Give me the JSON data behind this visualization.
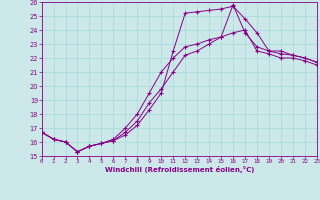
{
  "xlabel": "Windchill (Refroidissement éolien,°C)",
  "background_color": "#cce8e8",
  "grid_color": "#aadddd",
  "line_color": "#880088",
  "xmin": 0,
  "xmax": 23,
  "ymin": 15,
  "ymax": 26,
  "line1_x": [
    0,
    1,
    2,
    3,
    4,
    5,
    6,
    7,
    8,
    9,
    10,
    11,
    12,
    13,
    14,
    15,
    16,
    17,
    18,
    19,
    20,
    21,
    22,
    23
  ],
  "line1_y": [
    16.7,
    16.2,
    16.0,
    15.3,
    15.7,
    15.9,
    16.1,
    16.5,
    17.2,
    18.3,
    19.5,
    22.5,
    25.2,
    25.3,
    25.4,
    25.5,
    25.7,
    24.8,
    23.8,
    22.5,
    22.3,
    22.2,
    22.0,
    21.7
  ],
  "line2_x": [
    0,
    1,
    2,
    3,
    4,
    5,
    6,
    7,
    8,
    9,
    10,
    11,
    12,
    13,
    14,
    15,
    16,
    17,
    18,
    19,
    20,
    21,
    22,
    23
  ],
  "line2_y": [
    16.7,
    16.2,
    16.0,
    15.3,
    15.7,
    15.9,
    16.1,
    16.7,
    17.5,
    18.8,
    19.8,
    21.0,
    22.2,
    22.5,
    23.0,
    23.5,
    25.8,
    23.8,
    22.8,
    22.5,
    22.5,
    22.2,
    22.0,
    21.7
  ],
  "line3_x": [
    0,
    1,
    2,
    3,
    4,
    5,
    6,
    7,
    8,
    9,
    10,
    11,
    12,
    13,
    14,
    15,
    16,
    17,
    18,
    19,
    20,
    21,
    22,
    23
  ],
  "line3_y": [
    16.7,
    16.2,
    16.0,
    15.3,
    15.7,
    15.9,
    16.2,
    17.0,
    18.0,
    19.5,
    21.0,
    22.0,
    22.8,
    23.0,
    23.3,
    23.5,
    23.8,
    24.0,
    22.5,
    22.3,
    22.0,
    22.0,
    21.8,
    21.5
  ],
  "yticks": [
    15,
    16,
    17,
    18,
    19,
    20,
    21,
    22,
    23,
    24,
    25,
    26
  ],
  "xticks": [
    0,
    1,
    2,
    3,
    4,
    5,
    6,
    7,
    8,
    9,
    10,
    11,
    12,
    13,
    14,
    15,
    16,
    17,
    18,
    19,
    20,
    21,
    22,
    23
  ]
}
